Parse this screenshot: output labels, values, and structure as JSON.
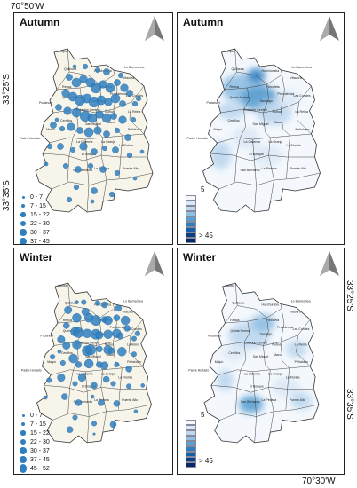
{
  "coords": {
    "top_left": "70°50'W",
    "left_upper": "33°25'S",
    "left_lower": "33°35'S",
    "right_upper": "33°25'S",
    "right_lower": "33°35'S",
    "bottom_right": "70°30'W"
  },
  "panels": [
    {
      "id": "autumn-points",
      "title": "Autumn",
      "kind": "points"
    },
    {
      "id": "autumn-surface",
      "title": "Autumn",
      "kind": "surface"
    },
    {
      "id": "winter-points",
      "title": "Winter",
      "kind": "points"
    },
    {
      "id": "winter-surface",
      "title": "Winter",
      "kind": "surface"
    }
  ],
  "point_legend": [
    "0 - 7",
    "7 - 15",
    "15 - 22",
    "22 - 30",
    "30 - 37",
    "37 - 45",
    "45 - 52"
  ],
  "ramp_legend": {
    "min": "5",
    "max": "> 45",
    "colors": [
      "#f3f8fd",
      "#dbe9f6",
      "#bcd7ee",
      "#8fbfe2",
      "#5a9fd2",
      "#2f7fc0",
      "#155fa8",
      "#0a3f86",
      "#06276a"
    ]
  },
  "communes": [
    {
      "name": "Lampa"
    },
    {
      "name": "Quilicura"
    },
    {
      "name": "Huechuraba"
    },
    {
      "name": "Vitacura"
    },
    {
      "name": "Lo Barnechea"
    },
    {
      "name": "Las Condes"
    },
    {
      "name": "Recoleta"
    },
    {
      "name": "Renca"
    },
    {
      "name": "Quinta Normal"
    },
    {
      "name": "Providencia"
    },
    {
      "name": "Pudahuel"
    },
    {
      "name": "Santiago"
    },
    {
      "name": "Estación Central"
    },
    {
      "name": "Ñuñoa"
    },
    {
      "name": "La Reina"
    },
    {
      "name": "Peñalolén"
    },
    {
      "name": "Macul"
    },
    {
      "name": "Cerrillos"
    },
    {
      "name": "Maipú"
    },
    {
      "name": "San Miguel"
    },
    {
      "name": "La Cisterna"
    },
    {
      "name": "La Granja"
    },
    {
      "name": "La Florida"
    },
    {
      "name": "El Bosque"
    },
    {
      "name": "San Bernardo"
    },
    {
      "name": "La Pintana"
    },
    {
      "name": "Puente Alto"
    },
    {
      "name": "Padre Hurtado"
    }
  ],
  "colors": {
    "dot": "#2f7fc0",
    "land_points": "#f7f4ea",
    "land_surface": "#f4f8fd"
  }
}
